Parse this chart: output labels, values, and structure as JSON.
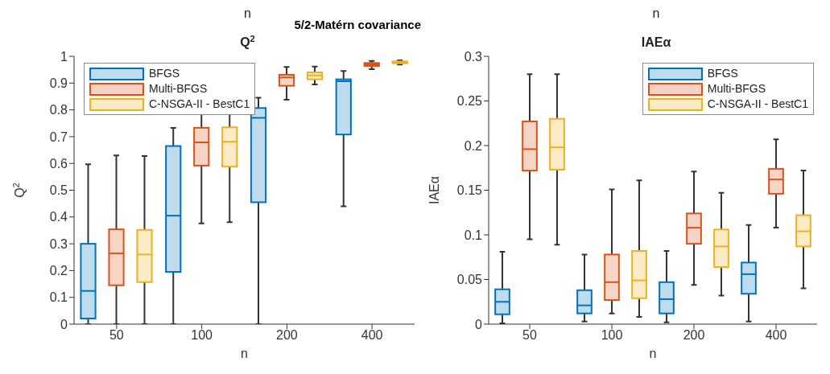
{
  "chart_data": [
    {
      "type": "box",
      "title": "Q$^{2}$",
      "xlabel": "n",
      "ylabel": "Q$^{2}$",
      "categories": [
        "50",
        "100",
        "200",
        "400"
      ],
      "ylim": [
        0,
        1
      ],
      "yticks": [
        0,
        0.1,
        0.2,
        0.3,
        0.4,
        0.5,
        0.6,
        0.7,
        0.8,
        0.9,
        1
      ],
      "legend": "top left",
      "annotations": [
        "n",
        "5/2-Matérn covariance"
      ],
      "series": [
        {
          "name": "BFGS",
          "color": "#0072bd",
          "boxes": [
            {
              "low": 0,
              "q1": 0.021,
              "median": 0.124,
              "q3": 0.3,
              "high": 0.597
            },
            {
              "low": 0,
              "q1": 0.195,
              "median": 0.405,
              "q3": 0.665,
              "high": 0.733
            },
            {
              "low": 0,
              "q1": 0.455,
              "median": 0.77,
              "q3": 0.807,
              "high": 0.845
            },
            {
              "low": 0.44,
              "q1": 0.708,
              "median": 0.907,
              "q3": 0.914,
              "high": 0.945
            }
          ]
        },
        {
          "name": "Multi-BFGS",
          "color": "#d95319",
          "boxes": [
            {
              "low": 0,
              "q1": 0.145,
              "median": 0.264,
              "q3": 0.354,
              "high": 0.63
            },
            {
              "low": 0.376,
              "q1": 0.592,
              "median": 0.679,
              "q3": 0.733,
              "high": 0.79
            },
            {
              "low": 0.838,
              "q1": 0.89,
              "median": 0.921,
              "q3": 0.931,
              "high": 0.96
            },
            {
              "low": 0.952,
              "q1": 0.964,
              "median": 0.97,
              "q3": 0.975,
              "high": 0.983
            }
          ]
        },
        {
          "name": "C-NSGA-II - BestC1",
          "color": "#edb120",
          "boxes": [
            {
              "low": 0,
              "q1": 0.157,
              "median": 0.26,
              "q3": 0.352,
              "high": 0.628
            },
            {
              "low": 0.381,
              "q1": 0.588,
              "median": 0.681,
              "q3": 0.735,
              "high": 0.805
            },
            {
              "low": 0.895,
              "q1": 0.914,
              "median": 0.929,
              "q3": 0.94,
              "high": 0.962
            },
            {
              "low": 0.969,
              "q1": 0.974,
              "median": 0.978,
              "q3": 0.981,
              "high": 0.985
            }
          ]
        }
      ]
    },
    {
      "type": "box",
      "title": "IAEα",
      "xlabel": "n",
      "ylabel": "IAEα",
      "categories": [
        "50",
        "100",
        "200",
        "400"
      ],
      "ylim": [
        0,
        0.3
      ],
      "yticks": [
        0,
        0.05,
        0.1,
        0.15,
        0.2,
        0.25,
        0.3
      ],
      "legend": "top right",
      "annotations": [
        "n"
      ],
      "series": [
        {
          "name": "BFGS",
          "color": "#0072bd",
          "boxes": [
            {
              "low": 0.001,
              "q1": 0.011,
              "median": 0.025,
              "q3": 0.039,
              "high": 0.081
            },
            {
              "low": 0.003,
              "q1": 0.012,
              "median": 0.021,
              "q3": 0.038,
              "high": 0.078
            },
            {
              "low": 0.002,
              "q1": 0.012,
              "median": 0.028,
              "q3": 0.047,
              "high": 0.082
            },
            {
              "low": 0.003,
              "q1": 0.034,
              "median": 0.056,
              "q3": 0.069,
              "high": 0.111
            }
          ]
        },
        {
          "name": "Multi-BFGS",
          "color": "#d95319",
          "boxes": [
            {
              "low": 0.095,
              "q1": 0.172,
              "median": 0.196,
              "q3": 0.227,
              "high": 0.28
            },
            {
              "low": 0.012,
              "q1": 0.027,
              "median": 0.047,
              "q3": 0.078,
              "high": 0.151
            },
            {
              "low": 0.044,
              "q1": 0.09,
              "median": 0.108,
              "q3": 0.124,
              "high": 0.171
            },
            {
              "low": 0.108,
              "q1": 0.146,
              "median": 0.162,
              "q3": 0.174,
              "high": 0.207
            }
          ]
        },
        {
          "name": "C-NSGA-II - BestC1",
          "color": "#edb120",
          "boxes": [
            {
              "low": 0.089,
              "q1": 0.173,
              "median": 0.198,
              "q3": 0.23,
              "high": 0.28
            },
            {
              "low": 0.008,
              "q1": 0.029,
              "median": 0.049,
              "q3": 0.082,
              "high": 0.161
            },
            {
              "low": 0.032,
              "q1": 0.064,
              "median": 0.087,
              "q3": 0.106,
              "high": 0.147
            },
            {
              "low": 0.04,
              "q1": 0.087,
              "median": 0.104,
              "q3": 0.122,
              "high": 0.172
            }
          ]
        }
      ]
    }
  ]
}
